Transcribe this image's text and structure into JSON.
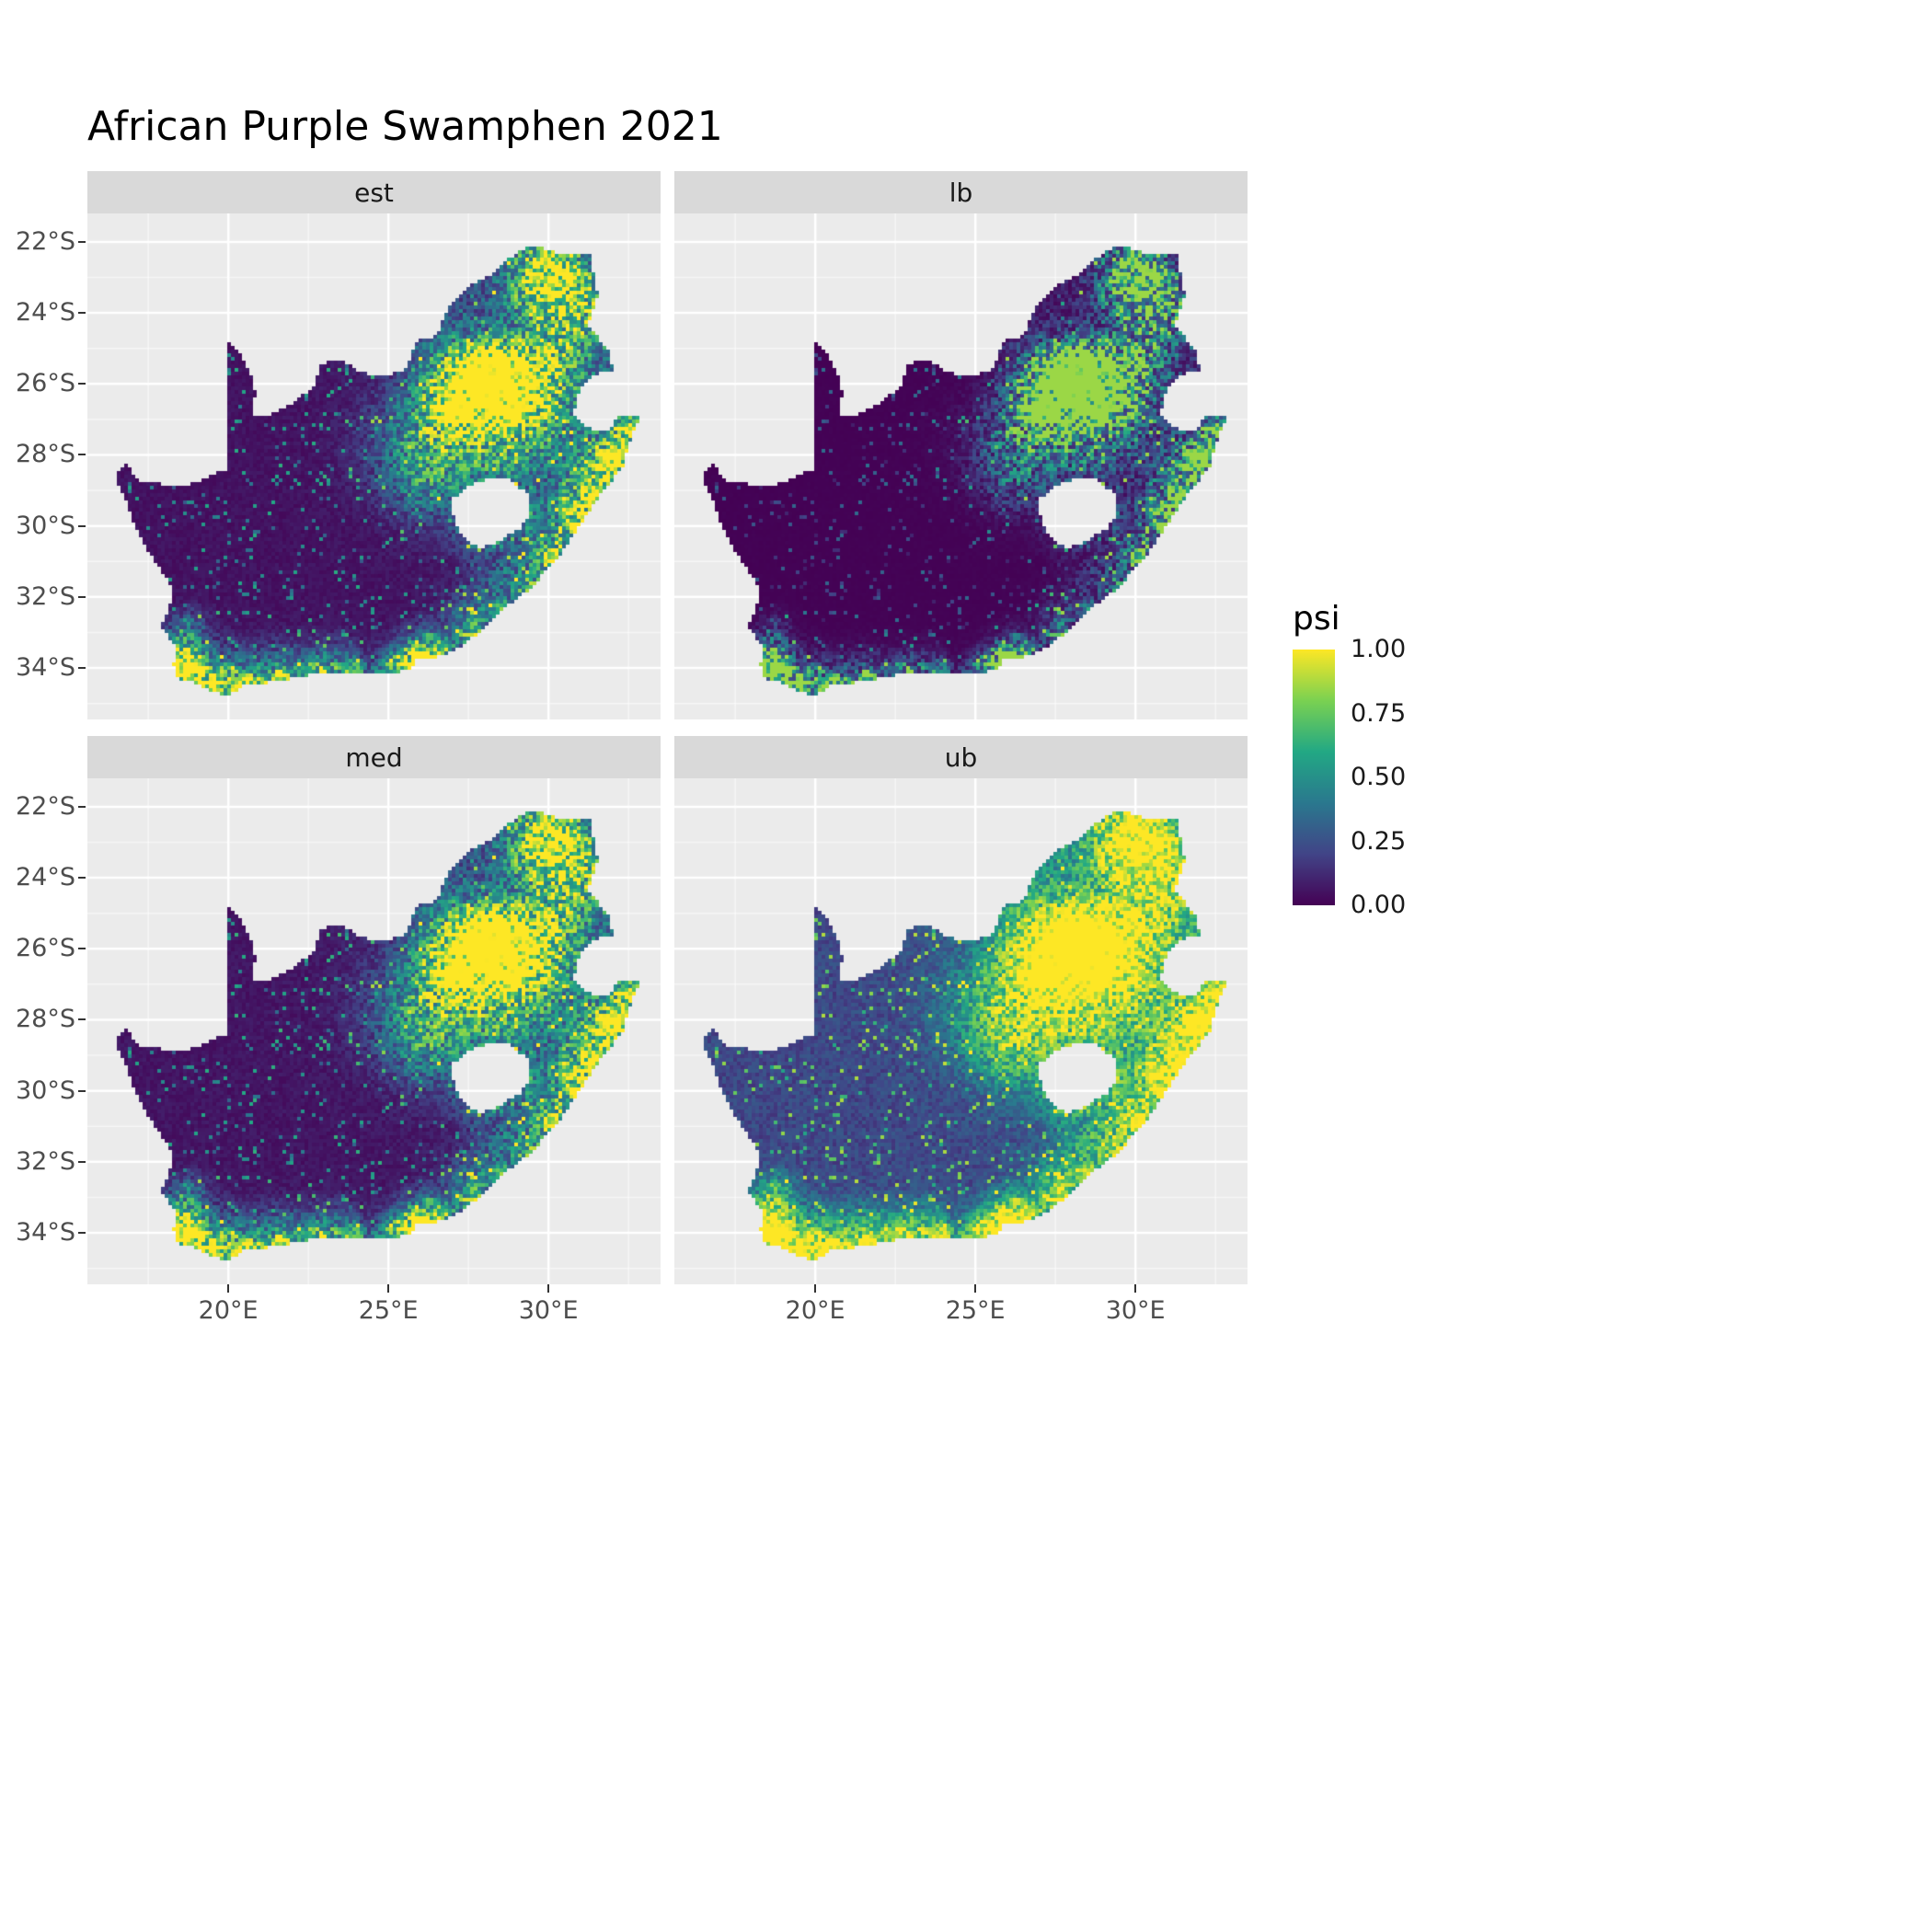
{
  "chart": {
    "title": "African Purple Swamphen 2021",
    "facets": [
      {
        "id": "est",
        "label": "est"
      },
      {
        "id": "lb",
        "label": "lb"
      },
      {
        "id": "med",
        "label": "med"
      },
      {
        "id": "ub",
        "label": "ub"
      }
    ],
    "legend": {
      "title": "psi",
      "ticks": [
        {
          "label": "1.00",
          "value": 1.0
        },
        {
          "label": "0.75",
          "value": 0.75
        },
        {
          "label": "0.50",
          "value": 0.5
        },
        {
          "label": "0.25",
          "value": 0.25
        },
        {
          "label": "0.00",
          "value": 0.0
        }
      ]
    },
    "axes": {
      "x": {
        "ticks": [
          {
            "label": "20°E",
            "value": 20
          },
          {
            "label": "25°E",
            "value": 25
          },
          {
            "label": "30°E",
            "value": 30
          }
        ]
      },
      "y": {
        "ticks": [
          {
            "label": "22°S",
            "value": -22
          },
          {
            "label": "24°S",
            "value": -24
          },
          {
            "label": "26°S",
            "value": -26
          },
          {
            "label": "28°S",
            "value": -28
          },
          {
            "label": "30°S",
            "value": -30
          },
          {
            "label": "32°S",
            "value": -32
          },
          {
            "label": "34°S",
            "value": -34
          }
        ]
      }
    },
    "colors": {
      "background": "#FFFFFF",
      "panel_bg": "#EBEBEB",
      "strip_bg": "#D9D9D9",
      "grid_major": "#FFFFFF",
      "axis_text": "#4D4D4D",
      "strip_text": "#1A1A1A",
      "title_text": "#000000"
    }
  },
  "chart_data": {
    "type": "heatmap",
    "subtype": "faceted raster occupancy map (2x2 facets) of South Africa",
    "title": "African Purple Swamphen 2021",
    "variable": "psi",
    "value_range": [
      0,
      1
    ],
    "facets": [
      "est",
      "lb",
      "med",
      "ub"
    ],
    "region": "South Africa (Lesotho shown as hole; Eswatini notch on eastern border)",
    "pattern_summary": "Occupancy probability psi is near 0 (dark purple) across most of the arid west and interior; elevated values (teal to yellow) concentrate in the northeast (Gauteng/Highveld hotspot around 28E,26S), the northern Limpopo region, the eastern KwaZulu-Natal coastal strip, and the southern Cape coast around Cape Town. lb facet is darkest, ub facet is brightest with a saturated yellow east-coast strip; est and med are intermediate.",
    "colormap": {
      "name": "viridis",
      "stops": [
        [
          0,
          "#440154"
        ],
        [
          0.2,
          "#414487"
        ],
        [
          0.4,
          "#2A788E"
        ],
        [
          0.6,
          "#22A884"
        ],
        [
          0.8,
          "#7AD151"
        ],
        [
          1,
          "#FDE725"
        ]
      ]
    },
    "extent": {
      "lon": [
        15.6,
        33.5
      ],
      "lat": [
        -35.45,
        -21.2
      ]
    },
    "grid": {
      "x_major": [
        20,
        25,
        30
      ],
      "x_minor": [
        17.5,
        22.5,
        27.5,
        32.5
      ],
      "y_major": [
        -22,
        -24,
        -26,
        -28,
        -30,
        -32,
        -34
      ],
      "y_minor": [
        -23,
        -25,
        -27,
        -29,
        -31,
        -33,
        -35
      ]
    },
    "facet_transforms": {
      "est": {
        "gamma": 1.0,
        "scale": 1.0
      },
      "lb": {
        "gamma": 1.8,
        "scale": 0.85
      },
      "med": {
        "gamma": 0.95,
        "scale": 1.02
      },
      "ub": {
        "gamma": 0.55,
        "scale": 1.15
      }
    },
    "cell_size_px": 4,
    "hotspots": [
      [
        28.05,
        -26.15,
        0.85,
        1.0
      ],
      [
        28.35,
        -25.7,
        0.55,
        0.7
      ],
      [
        29.25,
        -26.55,
        1.0,
        0.45
      ],
      [
        30.0,
        -25.35,
        0.85,
        0.4
      ],
      [
        29.8,
        -23.2,
        0.8,
        0.5
      ],
      [
        31.0,
        -23.9,
        0.9,
        0.4
      ],
      [
        30.2,
        -22.7,
        0.7,
        0.35
      ],
      [
        28.4,
        -28.1,
        1.3,
        0.28
      ],
      [
        26.8,
        -26.9,
        0.9,
        0.4
      ],
      [
        25.6,
        -27.8,
        1.0,
        0.22
      ],
      [
        27.0,
        -25.5,
        0.8,
        0.3
      ],
      [
        26.2,
        -28.9,
        0.8,
        0.25
      ],
      [
        30.9,
        -29.8,
        0.65,
        0.55
      ],
      [
        31.55,
        -28.75,
        0.7,
        0.5
      ],
      [
        32.25,
        -27.8,
        0.7,
        0.5
      ],
      [
        30.05,
        -30.8,
        0.55,
        0.4
      ],
      [
        28.9,
        -31.55,
        0.7,
        0.3
      ],
      [
        27.7,
        -32.65,
        0.65,
        0.35
      ],
      [
        26.35,
        -33.5,
        0.55,
        0.4
      ],
      [
        25.6,
        -33.85,
        0.5,
        0.55
      ],
      [
        18.48,
        -33.85,
        0.5,
        0.8
      ],
      [
        19.2,
        -34.45,
        0.65,
        0.55
      ],
      [
        20.4,
        -34.45,
        0.75,
        0.4
      ],
      [
        21.9,
        -34.2,
        0.65,
        0.35
      ],
      [
        23.3,
        -34.05,
        0.6,
        0.4
      ],
      [
        18.75,
        -32.9,
        0.45,
        0.3
      ],
      [
        27.8,
        -30.2,
        0.5,
        0.3
      ],
      [
        29.0,
        -29.7,
        0.45,
        0.35
      ]
    ],
    "coast_chain": [
      [
        32.6,
        -27.3
      ],
      [
        32.25,
        -28.15
      ],
      [
        31.6,
        -29.1
      ],
      [
        30.9,
        -30.0
      ],
      [
        30.2,
        -30.9
      ],
      [
        29.45,
        -31.75
      ],
      [
        28.55,
        -32.4
      ],
      [
        27.6,
        -33.1
      ],
      [
        26.7,
        -33.65
      ],
      [
        25.8,
        -33.95
      ],
      [
        24.9,
        -34.15
      ],
      [
        23.9,
        -34.1
      ],
      [
        22.8,
        -34.2
      ],
      [
        21.7,
        -34.35
      ],
      [
        20.6,
        -34.5
      ],
      [
        19.6,
        -34.6
      ],
      [
        18.7,
        -34.25
      ]
    ],
    "coast_radius": 0.28,
    "coast_strength": 0.42,
    "outline": [
      [
        16.45,
        -28.58
      ],
      [
        16.8,
        -28.25
      ],
      [
        17.25,
        -28.75
      ],
      [
        17.7,
        -28.75
      ],
      [
        18.2,
        -28.9
      ],
      [
        19.0,
        -28.8
      ],
      [
        19.6,
        -28.5
      ],
      [
        19.98,
        -28.43
      ],
      [
        19.98,
        -24.77
      ],
      [
        20.35,
        -25.1
      ],
      [
        20.65,
        -25.6
      ],
      [
        20.85,
        -26.2
      ],
      [
        20.75,
        -26.85
      ],
      [
        21.3,
        -26.85
      ],
      [
        21.8,
        -26.67
      ],
      [
        22.3,
        -26.35
      ],
      [
        22.7,
        -26.0
      ],
      [
        22.9,
        -25.45
      ],
      [
        23.5,
        -25.3
      ],
      [
        24.1,
        -25.65
      ],
      [
        24.85,
        -25.8
      ],
      [
        25.55,
        -25.6
      ],
      [
        25.9,
        -24.75
      ],
      [
        26.5,
        -24.65
      ],
      [
        26.9,
        -23.8
      ],
      [
        27.6,
        -23.2
      ],
      [
        28.35,
        -22.85
      ],
      [
        29.1,
        -22.2
      ],
      [
        29.7,
        -22.15
      ],
      [
        30.35,
        -22.35
      ],
      [
        31.3,
        -22.35
      ],
      [
        31.55,
        -23.5
      ],
      [
        31.25,
        -24.35
      ],
      [
        31.95,
        -25.15
      ],
      [
        32.0,
        -25.65
      ],
      [
        31.35,
        -25.75
      ],
      [
        30.95,
        -26.2
      ],
      [
        30.8,
        -26.85
      ],
      [
        31.2,
        -27.25
      ],
      [
        31.95,
        -27.3
      ],
      [
        32.15,
        -26.85
      ],
      [
        32.9,
        -26.86
      ],
      [
        32.55,
        -27.6
      ],
      [
        32.3,
        -28.4
      ],
      [
        31.7,
        -29.0
      ],
      [
        31.05,
        -29.9
      ],
      [
        30.25,
        -30.95
      ],
      [
        29.4,
        -31.8
      ],
      [
        28.55,
        -32.35
      ],
      [
        27.85,
        -33.0
      ],
      [
        27.1,
        -33.5
      ],
      [
        26.4,
        -33.75
      ],
      [
        25.95,
        -33.7
      ],
      [
        25.65,
        -34.05
      ],
      [
        24.85,
        -34.2
      ],
      [
        23.65,
        -34.1
      ],
      [
        22.55,
        -34.2
      ],
      [
        21.5,
        -34.4
      ],
      [
        20.5,
        -34.45
      ],
      [
        20.0,
        -34.82
      ],
      [
        19.35,
        -34.6
      ],
      [
        18.85,
        -34.4
      ],
      [
        18.45,
        -34.3
      ],
      [
        18.3,
        -33.9
      ],
      [
        18.35,
        -33.4
      ],
      [
        17.9,
        -32.8
      ],
      [
        18.3,
        -32.0
      ],
      [
        18.1,
        -31.5
      ],
      [
        17.55,
        -30.8
      ],
      [
        17.05,
        -29.9
      ],
      [
        16.75,
        -29.2
      ]
    ],
    "lesotho_hole": [
      [
        27.0,
        -29.25
      ],
      [
        27.4,
        -28.95
      ],
      [
        28.0,
        -28.7
      ],
      [
        28.7,
        -28.65
      ],
      [
        29.35,
        -29.1
      ],
      [
        29.45,
        -29.6
      ],
      [
        29.15,
        -30.05
      ],
      [
        28.5,
        -30.4
      ],
      [
        27.85,
        -30.65
      ],
      [
        27.35,
        -30.35
      ],
      [
        27.05,
        -29.85
      ]
    ]
  }
}
